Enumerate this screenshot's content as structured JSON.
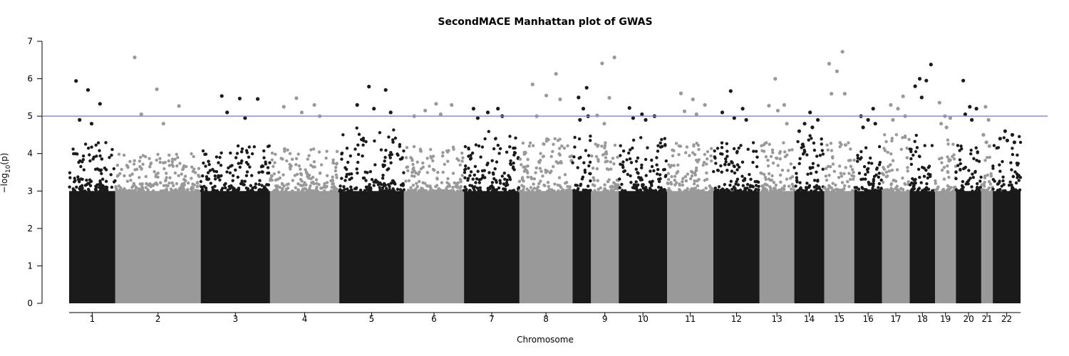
{
  "chart_data": {
    "type": "scatter",
    "title": "SecondMACE Manhattan plot of GWAS",
    "xlabel": "Chromosome",
    "ylabel": "−log",
    "ylabel_sub": "10",
    "ylabel_arg": "(p)",
    "ylim": [
      0,
      7
    ],
    "yticks": [
      0,
      1,
      2,
      3,
      4,
      5,
      6,
      7
    ],
    "threshold": {
      "value": 5,
      "color": "#8c8cd6"
    },
    "colors": {
      "odd": "#1a1a1a",
      "even": "#999999"
    },
    "grid": false,
    "chromosomes": [
      {
        "label": "1",
        "range": [
          0.0,
          1.0
        ],
        "max_base": 4.3,
        "peaks": [
          5.94,
          5.7,
          5.33,
          4.9,
          4.8
        ]
      },
      {
        "label": "2",
        "range": [
          1.0,
          2.85
        ],
        "max_base": 4.0,
        "peaks": [
          6.57,
          5.72,
          5.27,
          5.05,
          4.8
        ]
      },
      {
        "label": "3",
        "range": [
          2.85,
          4.35
        ],
        "max_base": 4.3,
        "peaks": [
          5.54,
          5.47,
          5.46,
          5.1,
          4.95
        ]
      },
      {
        "label": "4",
        "range": [
          4.35,
          5.85
        ],
        "max_base": 4.2,
        "peaks": [
          5.48,
          5.3,
          5.25,
          5.1,
          5.0
        ]
      },
      {
        "label": "5",
        "range": [
          5.85,
          7.25
        ],
        "max_base": 4.7,
        "peaks": [
          5.79,
          5.7,
          5.3,
          5.2,
          5.1
        ]
      },
      {
        "label": "6",
        "range": [
          7.25,
          8.55
        ],
        "max_base": 4.2,
        "peaks": [
          5.33,
          5.3,
          5.15,
          5.05,
          5.0
        ]
      },
      {
        "label": "7",
        "range": [
          8.55,
          9.75
        ],
        "max_base": 4.6,
        "peaks": [
          5.2,
          5.2,
          5.1,
          5.0,
          4.95
        ]
      },
      {
        "label": "8",
        "range": [
          9.75,
          10.9
        ],
        "max_base": 4.4,
        "peaks": [
          6.13,
          5.85,
          5.55,
          5.45,
          5.0
        ]
      },
      {
        "label": "",
        "range": [
          10.9,
          11.3
        ],
        "max_base": 4.5,
        "peaks": [
          5.76,
          5.5,
          5.2,
          5.0,
          4.9
        ]
      },
      {
        "label": "9",
        "range": [
          11.3,
          11.9
        ],
        "max_base": 4.3,
        "peaks": [
          6.57,
          6.41,
          5.49,
          5.02,
          4.8
        ]
      },
      {
        "label": "10",
        "range": [
          11.9,
          12.95
        ],
        "max_base": 4.5,
        "peaks": [
          5.22,
          5.05,
          5.0,
          4.95,
          4.9
        ]
      },
      {
        "label": "11",
        "range": [
          12.95,
          13.95
        ],
        "max_base": 4.3,
        "peaks": [
          5.61,
          5.45,
          5.3,
          5.13,
          5.05
        ]
      },
      {
        "label": "12",
        "range": [
          13.95,
          14.95
        ],
        "max_base": 4.3,
        "peaks": [
          5.67,
          5.2,
          5.1,
          4.95,
          4.9
        ]
      },
      {
        "label": "13",
        "range": [
          14.95,
          15.7
        ],
        "max_base": 4.4,
        "peaks": [
          6.0,
          5.3,
          5.28,
          5.15,
          4.8
        ]
      },
      {
        "label": "14",
        "range": [
          15.7,
          16.35
        ],
        "max_base": 4.5,
        "peaks": [
          5.1,
          4.9,
          4.8,
          4.7,
          4.6
        ]
      },
      {
        "label": "15",
        "range": [
          16.35,
          17.0
        ],
        "max_base": 4.3,
        "peaks": [
          6.72,
          6.4,
          6.2,
          5.6,
          5.6
        ]
      },
      {
        "label": "16",
        "range": [
          17.0,
          17.6
        ],
        "max_base": 4.2,
        "peaks": [
          5.2,
          5.0,
          4.9,
          4.8,
          4.7
        ]
      },
      {
        "label": "17",
        "range": [
          17.6,
          18.2
        ],
        "max_base": 4.6,
        "peaks": [
          5.53,
          5.3,
          5.2,
          5.0,
          4.9
        ]
      },
      {
        "label": "18",
        "range": [
          18.2,
          18.75
        ],
        "max_base": 4.5,
        "peaks": [
          6.38,
          6.0,
          5.95,
          5.8,
          5.5
        ]
      },
      {
        "label": "19",
        "range": [
          18.75,
          19.2
        ],
        "max_base": 4.4,
        "peaks": [
          5.36,
          5.0,
          4.95,
          4.8,
          4.7
        ]
      },
      {
        "label": "20",
        "range": [
          19.2,
          19.75
        ],
        "max_base": 4.3,
        "peaks": [
          5.95,
          5.25,
          5.2,
          5.05,
          4.9
        ]
      },
      {
        "label": "21",
        "range": [
          19.75,
          20.0
        ],
        "max_base": 3.9,
        "peaks": [
          5.25,
          4.9,
          4.5,
          4.3,
          4.2
        ]
      },
      {
        "label": "22",
        "range": [
          20.0,
          20.6
        ],
        "max_base": 4.5,
        "peaks": [
          4.6,
          4.5,
          4.4,
          4.35,
          4.3
        ]
      }
    ]
  }
}
